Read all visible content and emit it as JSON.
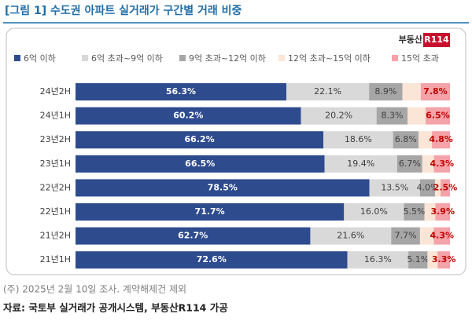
{
  "header": {
    "title": "[그림 1] 수도권 아파트 실거래가 구간별 거래 비중"
  },
  "logo": {
    "text": "부동산",
    "badge": "R114"
  },
  "chart_data": {
    "type": "stacked-barh",
    "categories": [
      "24년2H",
      "24년1H",
      "23년2H",
      "23년1H",
      "22년2H",
      "22년1H",
      "21년2H",
      "21년1H"
    ],
    "xlim": [
      0,
      100
    ],
    "legend": "top",
    "series": [
      {
        "name": "6억 이하",
        "color": "#2e4b8e",
        "label_color": "#ffffff",
        "values": [
          56.3,
          60.2,
          66.2,
          66.5,
          78.5,
          71.7,
          62.7,
          72.6
        ],
        "value_labels": [
          "56.3%",
          "60.2%",
          "66.2%",
          "66.5%",
          "78.5%",
          "71.7%",
          "62.7%",
          "72.6%"
        ]
      },
      {
        "name": "6억 초과~9억 이하",
        "color": "#d9d9d9",
        "label_color": "#404040",
        "values": [
          22.1,
          20.2,
          18.6,
          19.4,
          13.5,
          16.0,
          21.6,
          16.3
        ],
        "value_labels": [
          "22.1%",
          "20.2%",
          "18.6%",
          "19.4%",
          "13.5%",
          "16.0%",
          "21.6%",
          "16.3%"
        ]
      },
      {
        "name": "9억 초과~12억 이하",
        "color": "#a6a6a6",
        "label_color": "#404040",
        "values": [
          8.9,
          8.3,
          6.8,
          6.7,
          4.0,
          5.5,
          7.7,
          5.1
        ],
        "value_labels": [
          "8.9%",
          "8.3%",
          "6.8%",
          "6.7%",
          "4.0%",
          "5.5%",
          "7.7%",
          "5.1%"
        ]
      },
      {
        "name": "12억 초과~15억 이하",
        "color": "#fbe5d6",
        "values": [
          4.9,
          4.8,
          3.6,
          3.1,
          1.5,
          2.9,
          3.7,
          2.7
        ]
      },
      {
        "name": "15억 초과",
        "color": "#f4a3a8",
        "label_color": "#c00000",
        "values": [
          7.8,
          6.5,
          4.8,
          4.3,
          2.5,
          3.9,
          4.3,
          3.3
        ],
        "value_labels": [
          "7.8%",
          "6.5%",
          "4.8%",
          "4.3%",
          "2.5%",
          "3.9%",
          "4.3%",
          "3.3%"
        ]
      }
    ]
  },
  "footer": {
    "note": "(주) 2025년 2월 10일 조사. 계약해제건 제외",
    "source": "자료: 국토부 실거래가 공개시스템, 부동산R114 가공"
  }
}
